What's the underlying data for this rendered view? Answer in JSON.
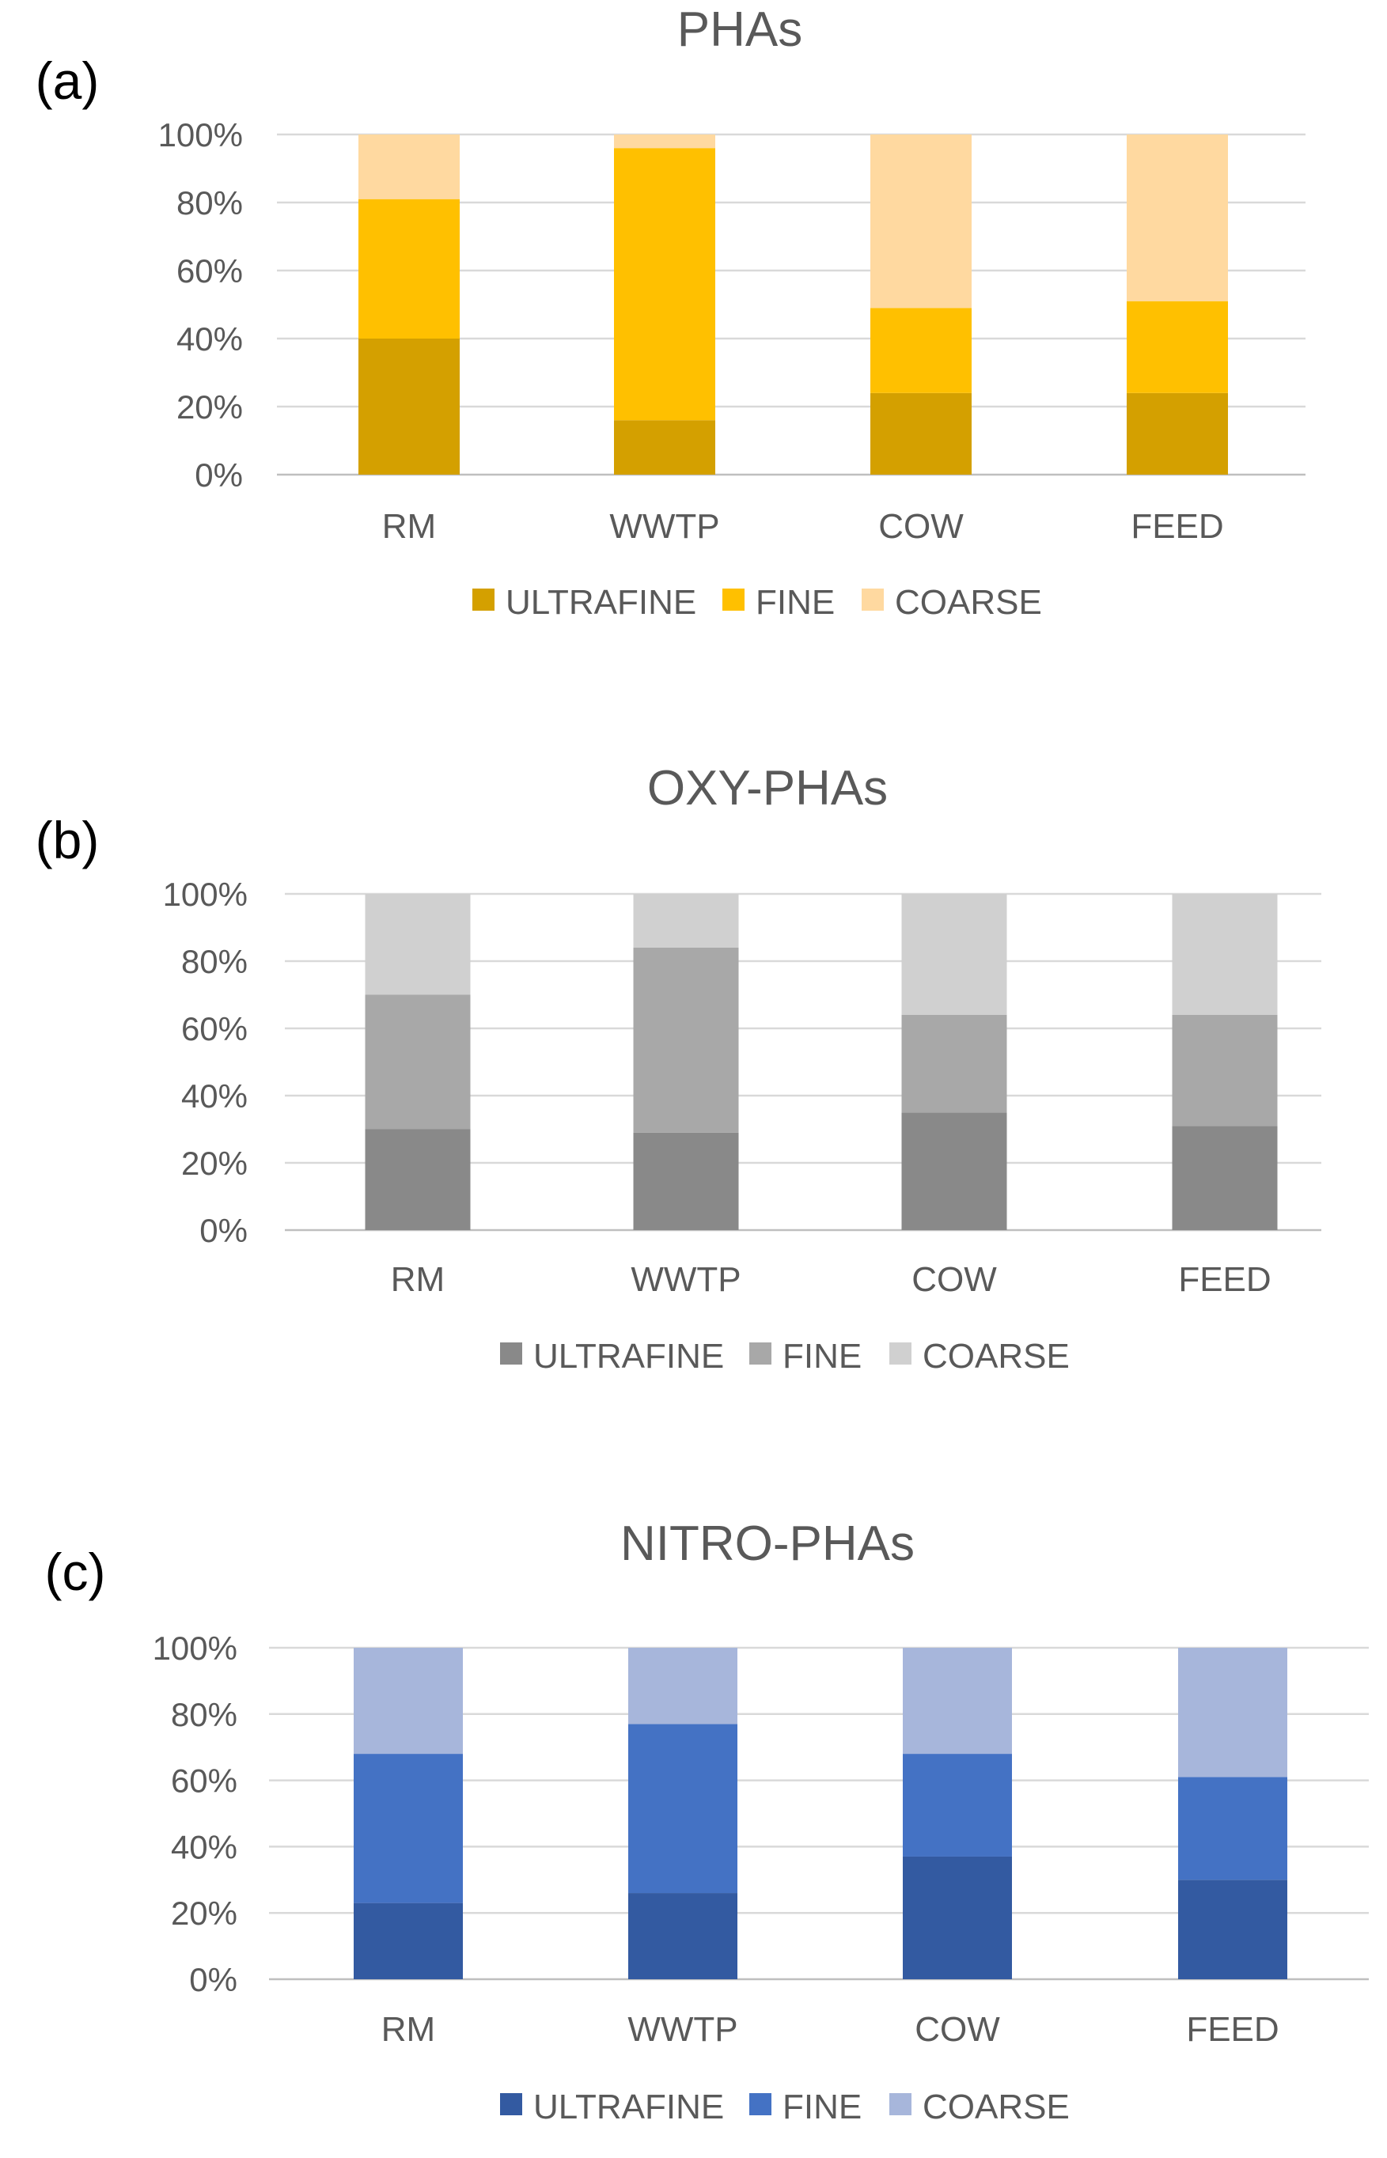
{
  "chart_data": [
    {
      "panel_label": "(a)",
      "type": "bar",
      "stacked": true,
      "percent": true,
      "title": "PHAs",
      "categories": [
        "RM",
        "WWTP",
        "COW",
        "FEED"
      ],
      "series": [
        {
          "name": "ULTRAFINE",
          "color": "#D4A000",
          "values": [
            40,
            16,
            24,
            24
          ]
        },
        {
          "name": "FINE",
          "color": "#FFC000",
          "values": [
            41,
            80,
            25,
            27
          ]
        },
        {
          "name": "COARSE",
          "color": "#FFD9A0",
          "values": [
            19,
            4,
            51,
            49
          ]
        }
      ],
      "yticks": [
        "0%",
        "20%",
        "40%",
        "60%",
        "80%",
        "100%"
      ],
      "ylim": [
        0,
        100
      ],
      "grid": true,
      "legend": "bottom"
    },
    {
      "panel_label": "(b)",
      "type": "bar",
      "stacked": true,
      "percent": true,
      "title": "OXY-PHAs",
      "categories": [
        "RM",
        "WWTP",
        "COW",
        "FEED"
      ],
      "series": [
        {
          "name": "ULTRAFINE",
          "color": "#898989",
          "values": [
            30,
            29,
            35,
            31
          ]
        },
        {
          "name": "FINE",
          "color": "#A8A8A8",
          "values": [
            40,
            55,
            29,
            33
          ]
        },
        {
          "name": "COARSE",
          "color": "#D0D0D0",
          "values": [
            30,
            16,
            36,
            36
          ]
        }
      ],
      "yticks": [
        "0%",
        "20%",
        "40%",
        "60%",
        "80%",
        "100%"
      ],
      "ylim": [
        0,
        100
      ],
      "grid": true,
      "legend": "bottom"
    },
    {
      "panel_label": "(c)",
      "type": "bar",
      "stacked": true,
      "percent": true,
      "title": "NITRO-PHAs",
      "categories": [
        "RM",
        "WWTP",
        "COW",
        "FEED"
      ],
      "series": [
        {
          "name": "ULTRAFINE",
          "color": "#335AA1",
          "values": [
            23,
            26,
            37,
            30
          ]
        },
        {
          "name": "FINE",
          "color": "#4472C4",
          "values": [
            45,
            51,
            31,
            31
          ]
        },
        {
          "name": "COARSE",
          "color": "#A7B6DB",
          "values": [
            32,
            23,
            32,
            39
          ]
        }
      ],
      "yticks": [
        "0%",
        "20%",
        "40%",
        "60%",
        "80%",
        "100%"
      ],
      "ylim": [
        0,
        100
      ],
      "grid": true,
      "legend": "bottom"
    }
  ]
}
